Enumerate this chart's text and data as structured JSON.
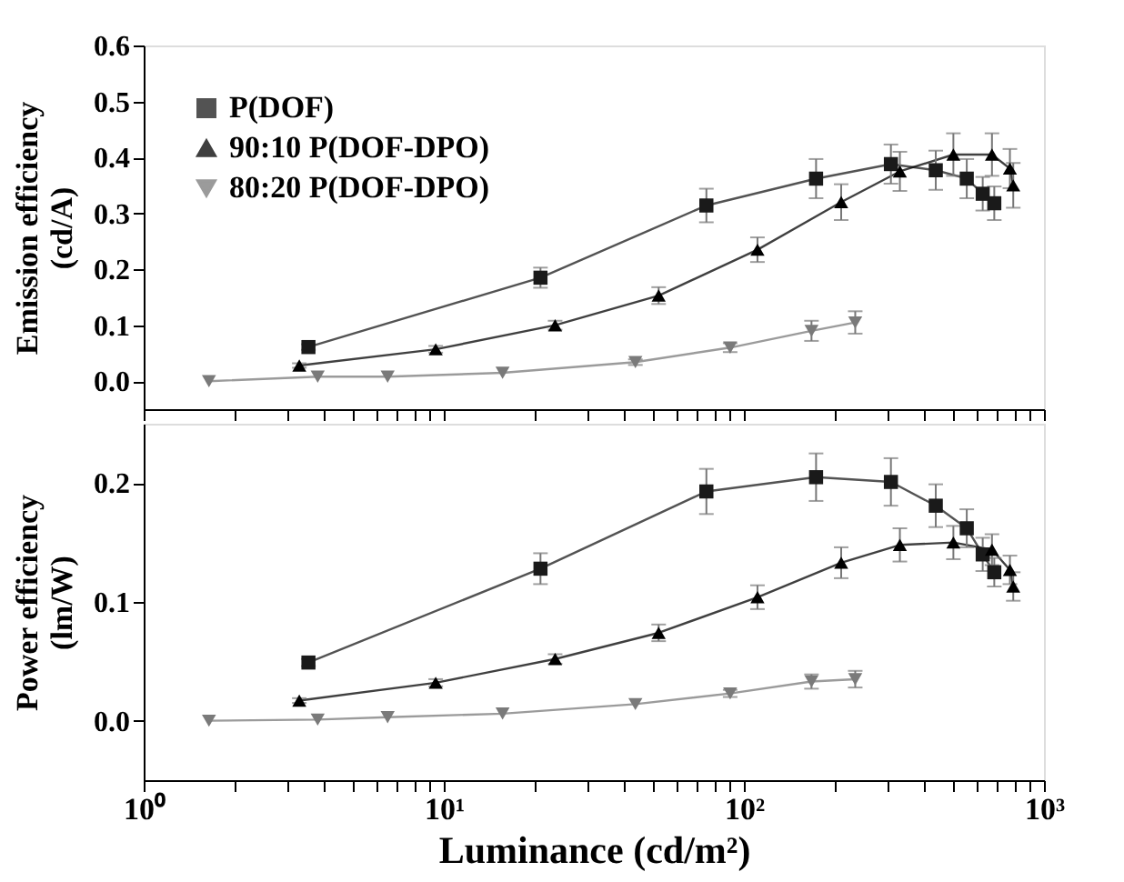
{
  "chart_data": [
    {
      "type": "line",
      "ylabel": "Emission efficiency\n(cd/A)",
      "ylim": [
        -0.05,
        0.6
      ],
      "yticks": [
        {
          "value": 0,
          "label": "0.0"
        },
        {
          "value": 0.1,
          "label": "0.1"
        },
        {
          "value": 0.2,
          "label": "0.2"
        },
        {
          "value": 0.3,
          "label": "0.3"
        },
        {
          "value": 0.4,
          "label": "0.4"
        },
        {
          "value": 0.5,
          "label": "0.5"
        },
        {
          "value": 0.6,
          "label": "0.6"
        }
      ],
      "xlim": [
        1,
        1000
      ],
      "log": "x",
      "tick_labels": "y",
      "legend": "top left",
      "grid": false,
      "xticks": [
        {
          "value": 1,
          "label": null
        },
        {
          "value": 2,
          "label": null
        },
        {
          "value": 3,
          "label": null
        },
        {
          "value": 4,
          "label": null
        },
        {
          "value": 5,
          "label": null
        },
        {
          "value": 6,
          "label": null
        },
        {
          "value": 7,
          "label": null
        },
        {
          "value": 8,
          "label": null
        },
        {
          "value": 9,
          "label": null
        },
        {
          "value": 10,
          "label": null
        },
        {
          "value": 20,
          "label": null
        },
        {
          "value": 30,
          "label": null
        },
        {
          "value": 40,
          "label": null
        },
        {
          "value": 50,
          "label": null
        },
        {
          "value": 60,
          "label": null
        },
        {
          "value": 70,
          "label": null
        },
        {
          "value": 80,
          "label": null
        },
        {
          "value": 90,
          "label": null
        },
        {
          "value": 100,
          "label": null
        },
        {
          "value": 200,
          "label": null
        },
        {
          "value": 300,
          "label": null
        },
        {
          "value": 400,
          "label": null
        },
        {
          "value": 500,
          "label": null
        },
        {
          "value": 600,
          "label": null
        },
        {
          "value": 700,
          "label": null
        },
        {
          "value": 800,
          "label": null
        },
        {
          "value": 900,
          "label": null
        },
        {
          "value": 1000,
          "label": null
        }
      ],
      "series": [
        {
          "name": "P(DOF)",
          "color": "#1a1a1a",
          "marker": "square",
          "x": [
            3.54,
            21,
            75,
            174,
            309,
            436,
            553,
            625,
            683
          ],
          "values": [
            0.061,
            0.185,
            0.314,
            0.362,
            0.388,
            0.377,
            0.362,
            0.335,
            0.318
          ],
          "errors": [
            0.005,
            0.018,
            0.03,
            0.035,
            0.035,
            0.035,
            0.035,
            0.03,
            0.03
          ]
        },
        {
          "name": "90:10 P(DOF-DPO)",
          "color": "#000000",
          "marker": "triangle",
          "x": [
            3.3,
            9.4,
            23.5,
            52,
            111,
            211,
            331,
            499,
            671,
            770,
            790
          ],
          "values": [
            0.028,
            0.057,
            0.1,
            0.153,
            0.235,
            0.32,
            0.375,
            0.405,
            0.405,
            0.38,
            0.35
          ],
          "errors": [
            0.004,
            0.006,
            0.008,
            0.015,
            0.022,
            0.032,
            0.035,
            0.038,
            0.038,
            0.035,
            0.04
          ]
        },
        {
          "name": "80:20 P(DOF-DPO)",
          "color": "#7a7a7a",
          "marker": "triangle-down",
          "x": [
            1.65,
            3.8,
            6.5,
            15.7,
            43.5,
            90,
            168,
            235
          ],
          "values": [
            0,
            0.008,
            0.008,
            0.015,
            0.034,
            0.06,
            0.09,
            0.105
          ],
          "errors": [
            null,
            null,
            null,
            null,
            0.005,
            0.008,
            0.018,
            0.02
          ]
        }
      ]
    },
    {
      "type": "line",
      "ylabel": "Power efficiency\n(lm/W)",
      "xlabel": "Luminance (cd/m²)",
      "ylim": [
        -0.05,
        0.25
      ],
      "yticks": [
        {
          "value": 0,
          "label": "0.0"
        },
        {
          "value": 0.1,
          "label": "0.1"
        },
        {
          "value": 0.2,
          "label": "0.2"
        }
      ],
      "xlim": [
        1,
        1000
      ],
      "log": "x",
      "legend": false,
      "grid": false,
      "xticks": [
        {
          "value": 1,
          "label": "10⁰"
        },
        {
          "value": 2,
          "label": null
        },
        {
          "value": 3,
          "label": null
        },
        {
          "value": 4,
          "label": null
        },
        {
          "value": 5,
          "label": null
        },
        {
          "value": 6,
          "label": null
        },
        {
          "value": 7,
          "label": null
        },
        {
          "value": 8,
          "label": null
        },
        {
          "value": 9,
          "label": null
        },
        {
          "value": 10,
          "label": "10¹"
        },
        {
          "value": 20,
          "label": null
        },
        {
          "value": 30,
          "label": null
        },
        {
          "value": 40,
          "label": null
        },
        {
          "value": 50,
          "label": null
        },
        {
          "value": 60,
          "label": null
        },
        {
          "value": 70,
          "label": null
        },
        {
          "value": 80,
          "label": null
        },
        {
          "value": 90,
          "label": null
        },
        {
          "value": 100,
          "label": "10²"
        },
        {
          "value": 200,
          "label": null
        },
        {
          "value": 300,
          "label": null
        },
        {
          "value": 400,
          "label": null
        },
        {
          "value": 500,
          "label": null
        },
        {
          "value": 600,
          "label": null
        },
        {
          "value": 700,
          "label": null
        },
        {
          "value": 800,
          "label": null
        },
        {
          "value": 900,
          "label": null
        },
        {
          "value": 1000,
          "label": "10³"
        }
      ],
      "series": [
        {
          "color": "#1a1a1a",
          "marker": "square",
          "x": [
            3.54,
            21,
            75,
            174,
            309,
            436,
            553,
            625,
            683
          ],
          "values": [
            0.049,
            0.128,
            0.193,
            0.205,
            0.201,
            0.181,
            0.162,
            0.14,
            0.125
          ],
          "errors": [
            0.003,
            0.013,
            0.019,
            0.02,
            0.02,
            0.018,
            0.016,
            0.014,
            0.012
          ]
        },
        {
          "color": "#000000",
          "marker": "triangle",
          "x": [
            3.3,
            9.4,
            23.5,
            52,
            111,
            211,
            331,
            499,
            671,
            770,
            790
          ],
          "values": [
            0.017,
            0.032,
            0.052,
            0.074,
            0.104,
            0.133,
            0.148,
            0.15,
            0.144,
            0.127,
            0.113
          ],
          "errors": [
            0.002,
            0.003,
            0.004,
            0.007,
            0.01,
            0.013,
            0.014,
            0.014,
            0.013,
            0.012,
            0.012
          ]
        },
        {
          "color": "#7a7a7a",
          "marker": "triangle-down",
          "x": [
            1.65,
            3.8,
            6.5,
            15.7,
            43.5,
            90,
            168,
            235
          ],
          "values": [
            0,
            0.001,
            0.003,
            0.006,
            0.014,
            0.023,
            0.033,
            0.035
          ],
          "errors": [
            null,
            null,
            null,
            null,
            null,
            0.003,
            0.006,
            0.007
          ]
        }
      ]
    }
  ]
}
